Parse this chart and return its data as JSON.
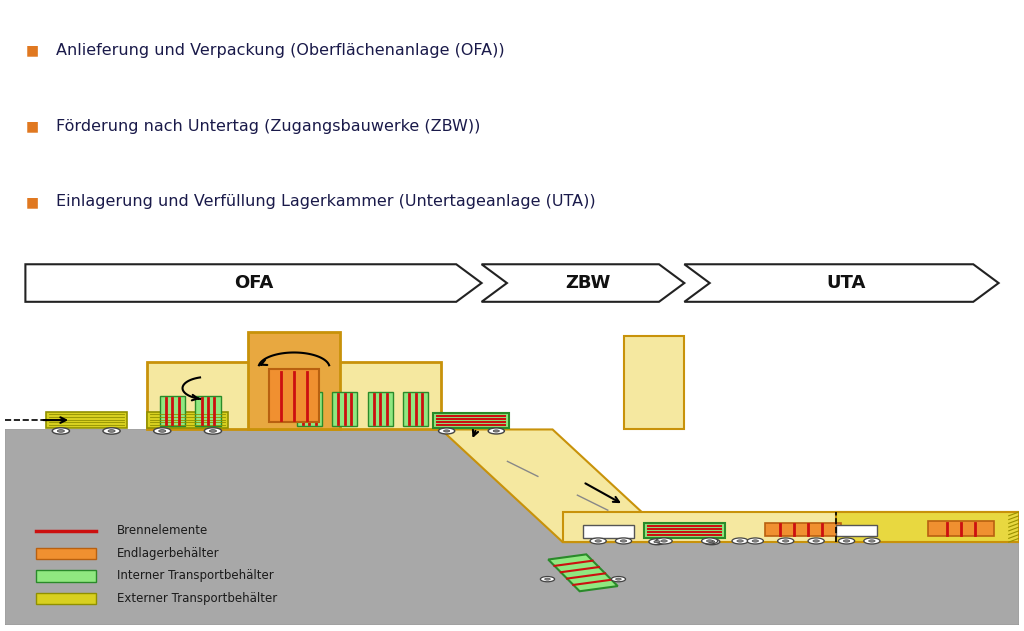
{
  "bg_color": "#ffffff",
  "diagram_bg": "#c8e8f5",
  "ground_color": "#a8a8a8",
  "tunnel_color": "#f5e8a0",
  "building_color": "#f5e8a0",
  "building_dark": "#e8a840",
  "building_outline": "#c8920a",
  "green_container": "#90e880",
  "green_outline": "#2a8a2a",
  "orange_container": "#f09030",
  "orange_outline": "#b86010",
  "red_fuel": "#cc1010",
  "yellow_ext": "#d8d020",
  "yellow_ext_outline": "#909000",
  "white_color": "#ffffff",
  "bullet_color": "#e07820",
  "text_color": "#1a1a4a",
  "legend_label_color": "#1a1a1a",
  "bullet_items": [
    "Anlieferung und Verpackung (Oberflächenanlage (OFA))",
    "Förderung nach Untertag (Zugangsbauwerke (ZBW))",
    "Einlagerung und Verfüllung Lagerkammer (Untertageanlage (UTA))"
  ],
  "legend_items": [
    {
      "label": "Brennelemente",
      "type": "line"
    },
    {
      "label": "Endlagerbehälter",
      "type": "rect"
    },
    {
      "label": "Interner Transportbehälter",
      "type": "rect"
    },
    {
      "label": "Externer Transportbehälter",
      "type": "rect"
    }
  ],
  "ofa_label": "OFA",
  "zbw_label": "ZBW",
  "uta_label": "UTA"
}
